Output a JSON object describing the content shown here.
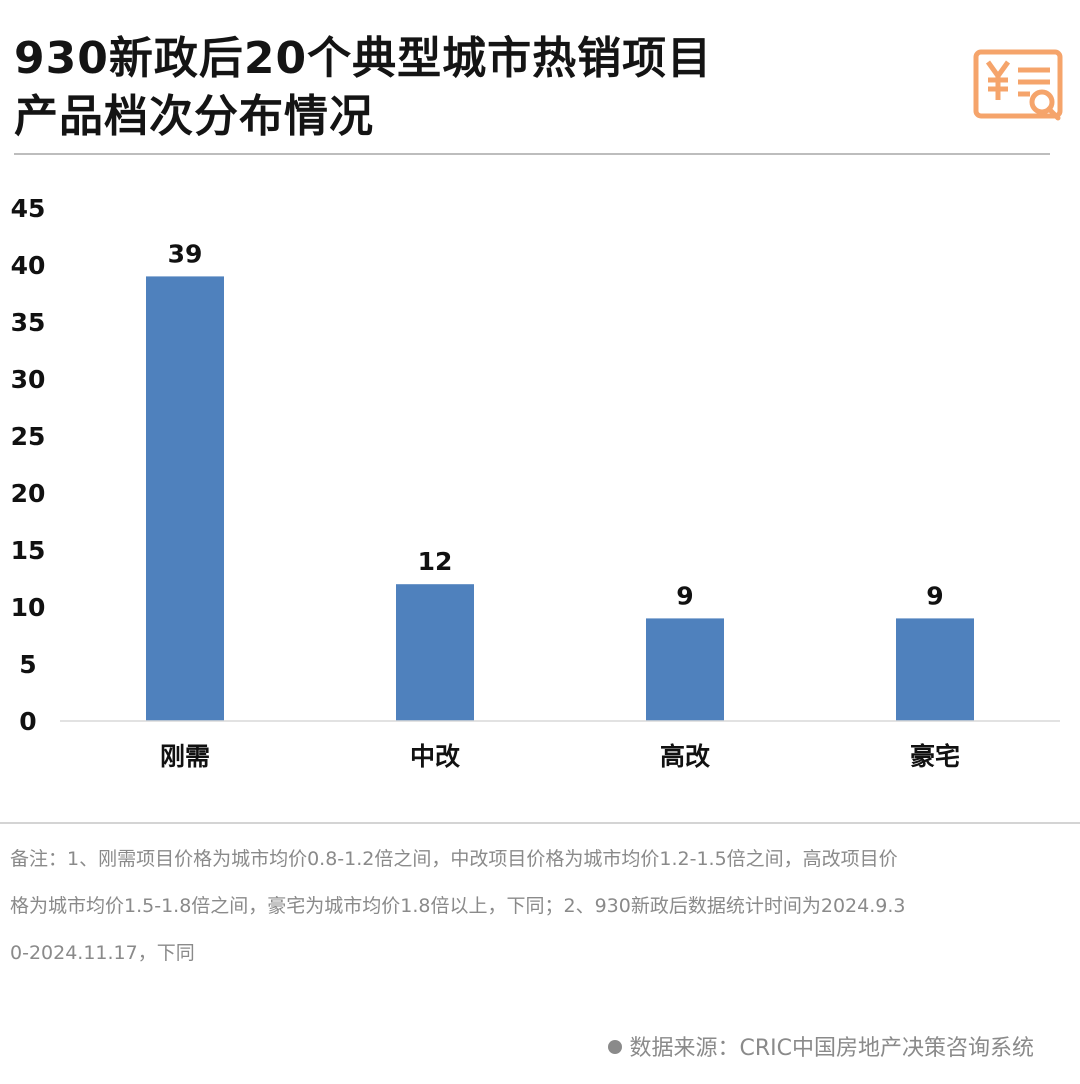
{
  "title": {
    "line1": "930新政后20个典型城市热销项目",
    "line2": "产品档次分布情况"
  },
  "brand_icon": "receipt-search-icon",
  "colors": {
    "bar": "#4f81bd",
    "icon": "#f5a46b",
    "note": "#8a8a8a"
  },
  "chart_data": {
    "type": "bar",
    "categories": [
      "刚需",
      "中改",
      "高改",
      "豪宅"
    ],
    "values": [
      39,
      12,
      9,
      9
    ],
    "ylim": [
      0,
      45
    ],
    "yticks": [
      0,
      5,
      10,
      15,
      20,
      25,
      30,
      35,
      40,
      45
    ],
    "grid": false,
    "legend": "none"
  },
  "note": "备注：1、刚需项目价格为城市均价0.8-1.2倍之间，中改项目价格为城市均价1.2-1.5倍之间，高改项目价格为城市均价1.5-1.8倍之间，豪宅为城市均价1.8倍以上，下同；2、930新政后数据统计时间为2024.9.30-2024.11.17，下同",
  "source": "数据来源：CRIC中国房地产决策咨询系统"
}
